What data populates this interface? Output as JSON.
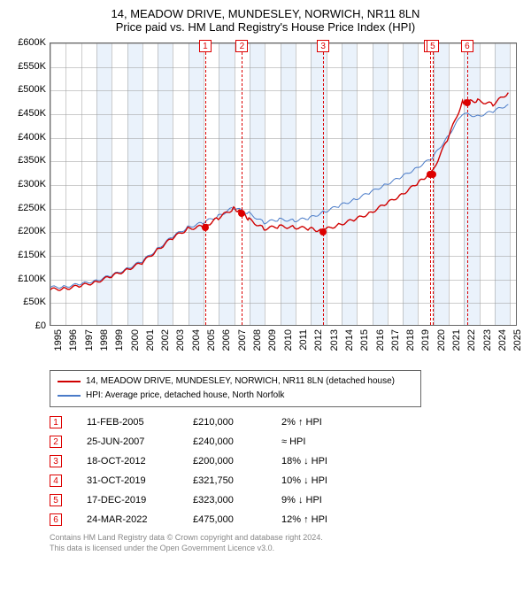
{
  "title": "14, MEADOW DRIVE, MUNDESLEY, NORWICH, NR11 8LN",
  "subtitle": "Price paid vs. HM Land Registry's House Price Index (HPI)",
  "chart": {
    "type": "line",
    "background_color": "#ffffff",
    "plot_border_color": "#666666",
    "grid_color": "#999999",
    "band_color": "#eaf2fb",
    "xlim": [
      1995,
      2025.5
    ],
    "ylim": [
      0,
      600000
    ],
    "ytick_step": 50000,
    "yticklabels": [
      "£0",
      "£50K",
      "£100K",
      "£150K",
      "£200K",
      "£250K",
      "£300K",
      "£350K",
      "£400K",
      "£450K",
      "£500K",
      "£550K",
      "£600K"
    ],
    "xticks": [
      1995,
      1996,
      1997,
      1998,
      1999,
      2000,
      2001,
      2002,
      2003,
      2004,
      2005,
      2006,
      2007,
      2008,
      2009,
      2010,
      2011,
      2012,
      2013,
      2014,
      2015,
      2016,
      2017,
      2018,
      2019,
      2020,
      2021,
      2022,
      2023,
      2024,
      2025
    ],
    "xticklabels": [
      "1995",
      "1996",
      "1997",
      "1998",
      "1999",
      "2000",
      "2001",
      "2002",
      "2003",
      "2004",
      "2005",
      "2006",
      "2007",
      "2008",
      "2009",
      "2010",
      "2011",
      "2012",
      "2013",
      "2014",
      "2015",
      "2016",
      "2017",
      "2018",
      "2019",
      "2020",
      "2021",
      "2022",
      "2023",
      "2024",
      "2025"
    ],
    "tick_fontsize": 11,
    "series": [
      {
        "label": "14, MEADOW DRIVE, MUNDESLEY, NORWICH, NR11 8LN (detached house)",
        "color": "#d00000",
        "line_width": 1.4
      },
      {
        "label": "HPI: Average price, detached house, North Norfolk",
        "color": "#4a7bc8",
        "line_width": 1.0
      }
    ]
  },
  "red_series": {
    "x": [
      1995,
      1996,
      1997,
      1998,
      1999,
      2000,
      2001,
      2002,
      2003,
      2004,
      2005,
      2005.1,
      2006,
      2007,
      2007.5,
      2008,
      2009,
      2010,
      2011,
      2012,
      2012.8,
      2013,
      2014,
      2015,
      2016,
      2017,
      2018,
      2019,
      2019.8,
      2019.95,
      2020,
      2021,
      2022,
      2022.2,
      2023,
      2024,
      2025
    ],
    "y": [
      75000,
      78000,
      83000,
      92000,
      103000,
      118000,
      132000,
      160000,
      185000,
      205000,
      210000,
      210000,
      228000,
      248000,
      240000,
      225000,
      205000,
      210000,
      208000,
      205000,
      200000,
      203000,
      215000,
      225000,
      240000,
      258000,
      278000,
      300000,
      321750,
      323000,
      325000,
      395000,
      475000,
      475000,
      478000,
      470000,
      495000
    ]
  },
  "blue_series": {
    "x": [
      1995,
      1996,
      1997,
      1998,
      1999,
      2000,
      2001,
      2002,
      2003,
      2004,
      2005,
      2006,
      2007,
      2008,
      2009,
      2010,
      2011,
      2012,
      2013,
      2014,
      2015,
      2016,
      2017,
      2018,
      2019,
      2020,
      2021,
      2022,
      2023,
      2024,
      2025
    ],
    "y": [
      80000,
      82000,
      87000,
      95000,
      105000,
      120000,
      135000,
      162000,
      188000,
      208000,
      218000,
      232000,
      250000,
      238000,
      218000,
      225000,
      222000,
      228000,
      242000,
      255000,
      268000,
      283000,
      300000,
      315000,
      335000,
      355000,
      400000,
      450000,
      445000,
      455000,
      470000
    ]
  },
  "vbands": [
    {
      "start": 1998,
      "end": 1999
    },
    {
      "start": 2000,
      "end": 2001
    },
    {
      "start": 2002,
      "end": 2003
    },
    {
      "start": 2004,
      "end": 2005
    },
    {
      "start": 2006,
      "end": 2007
    },
    {
      "start": 2008,
      "end": 2009
    },
    {
      "start": 2010,
      "end": 2011
    },
    {
      "start": 2012,
      "end": 2013
    },
    {
      "start": 2014,
      "end": 2015
    },
    {
      "start": 2016,
      "end": 2017
    },
    {
      "start": 2018,
      "end": 2019
    },
    {
      "start": 2020,
      "end": 2021
    },
    {
      "start": 2022,
      "end": 2023
    },
    {
      "start": 2024,
      "end": 2025
    }
  ],
  "event_markers": [
    {
      "n": "1",
      "x": 2005.1,
      "y": 210000
    },
    {
      "n": "2",
      "x": 2007.5,
      "y": 240000
    },
    {
      "n": "3",
      "x": 2012.8,
      "y": 200000
    },
    {
      "n": "4",
      "x": 2019.8,
      "y": 321750
    },
    {
      "n": "5",
      "x": 2019.95,
      "y": 323000
    },
    {
      "n": "6",
      "x": 2022.2,
      "y": 475000
    }
  ],
  "legend": {
    "items": [
      {
        "label": "14, MEADOW DRIVE, MUNDESLEY, NORWICH, NR11 8LN (detached house)",
        "color": "#d00000"
      },
      {
        "label": "HPI: Average price, detached house, North Norfolk",
        "color": "#4a7bc8"
      }
    ]
  },
  "events": [
    {
      "n": "1",
      "date": "11-FEB-2005",
      "price": "£210,000",
      "delta": "2% ↑ HPI"
    },
    {
      "n": "2",
      "date": "25-JUN-2007",
      "price": "£240,000",
      "delta": "≈ HPI"
    },
    {
      "n": "3",
      "date": "18-OCT-2012",
      "price": "£200,000",
      "delta": "18% ↓ HPI"
    },
    {
      "n": "4",
      "date": "31-OCT-2019",
      "price": "£321,750",
      "delta": "10% ↓ HPI"
    },
    {
      "n": "5",
      "date": "17-DEC-2019",
      "price": "£323,000",
      "delta": "9% ↓ HPI"
    },
    {
      "n": "6",
      "date": "24-MAR-2022",
      "price": "£475,000",
      "delta": "12% ↑ HPI"
    }
  ],
  "footer": {
    "l1": "Contains HM Land Registry data © Crown copyright and database right 2024.",
    "l2": "This data is licensed under the Open Government Licence v3.0."
  }
}
